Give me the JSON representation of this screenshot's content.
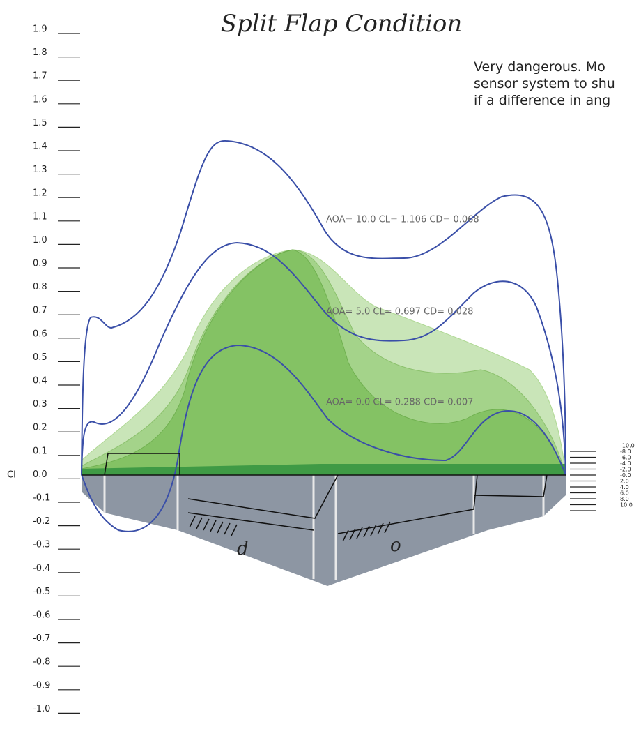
{
  "title": "Split Flap Condition",
  "note": {
    "lines": [
      "Very dangerous. Mo",
      "sensor system to shu",
      "if a difference in ang"
    ]
  },
  "left_axis": {
    "label": "Cl",
    "ticks": [
      "1.9",
      "1.8",
      "1.7",
      "1.6",
      "1.5",
      "1.4",
      "1.3",
      "1.2",
      "1.1",
      "1.0",
      "0.9",
      "0.8",
      "0.7",
      "0.6",
      "0.5",
      "0.4",
      "0.3",
      "0.2",
      "0.1",
      "0.0",
      "-0.1",
      "-0.2",
      "-0.3",
      "-0.4",
      "-0.5",
      "-0.6",
      "-0.7",
      "-0.8",
      "-0.9",
      "-1.0"
    ]
  },
  "right_axis": {
    "ticks": [
      "-10.0",
      "-8.0",
      "-6.0",
      "-4.0",
      "-2.0",
      "-0.0",
      "2.0",
      "4.0",
      "6.0",
      "8.0",
      "10.0"
    ]
  },
  "annotations": [
    "AOA= 10.0 CL= 1.106 CD= 0.068",
    "AOA= 5.0 CL= 0.697 CD= 0.028",
    "AOA= 0.0 CL= 0.288 CD= 0.007"
  ],
  "handwritten": [
    "d",
    "o"
  ]
}
